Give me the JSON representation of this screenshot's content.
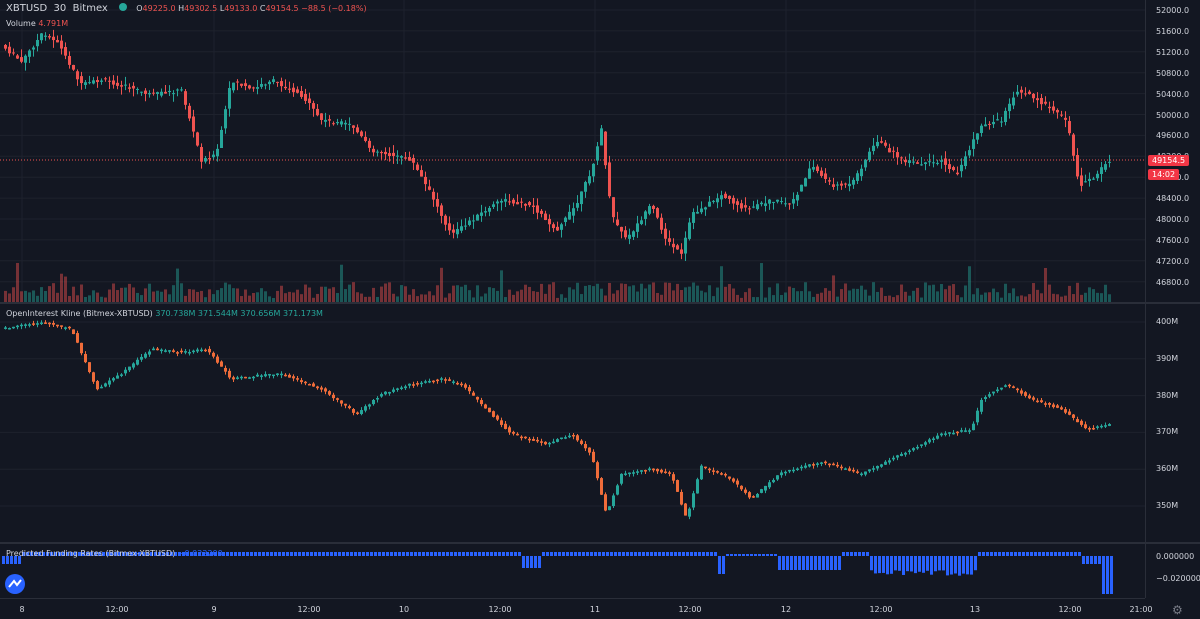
{
  "header": {
    "symbol": "XBTUSD",
    "interval": "30",
    "exchange": "Bitmex",
    "open_label": "O",
    "open": "49225.0",
    "high_label": "H",
    "high": "49302.5",
    "low_label": "L",
    "low": "49133.0",
    "close_label": "C",
    "close": "49154.5",
    "change": "−88.5 (−0.18%)"
  },
  "volume": {
    "label": "Volume",
    "value": "4.791M"
  },
  "price_axis": [
    "52000.0",
    "51600.0",
    "51200.0",
    "50800.0",
    "50400.0",
    "50000.0",
    "49600.0",
    "49200.0",
    "48800.0",
    "48400.0",
    "48000.0",
    "47600.0",
    "47200.0",
    "46800.0"
  ],
  "last_price": {
    "price": "49154.5",
    "countdown": "14:02"
  },
  "oi": {
    "title": "OpenInterest Kline (Bitmex-XBTUSD)",
    "o": "370.738M",
    "h": "371.544M",
    "l": "370.656M",
    "c": "371.173M",
    "axis": [
      "400M",
      "390M",
      "380M",
      "370M",
      "360M",
      "350M"
    ]
  },
  "funding": {
    "title": "Predicted Funding Rates (Bitmex-XBTUSD)",
    "value": "−0.022200",
    "axis": [
      "0.000000",
      "−0.020000"
    ]
  },
  "time_axis": [
    "8",
    "12:00",
    "9",
    "12:00",
    "10",
    "12:00",
    "11",
    "12:00",
    "12",
    "12:00",
    "13",
    "12:00",
    "21:00"
  ],
  "colors": {
    "up": "#26a69a",
    "down": "#ef5350",
    "funding": "#2962ff",
    "background": "#131722"
  },
  "icons": {
    "settings": "gear-icon",
    "logo": "tradingview-logo-icon"
  }
}
